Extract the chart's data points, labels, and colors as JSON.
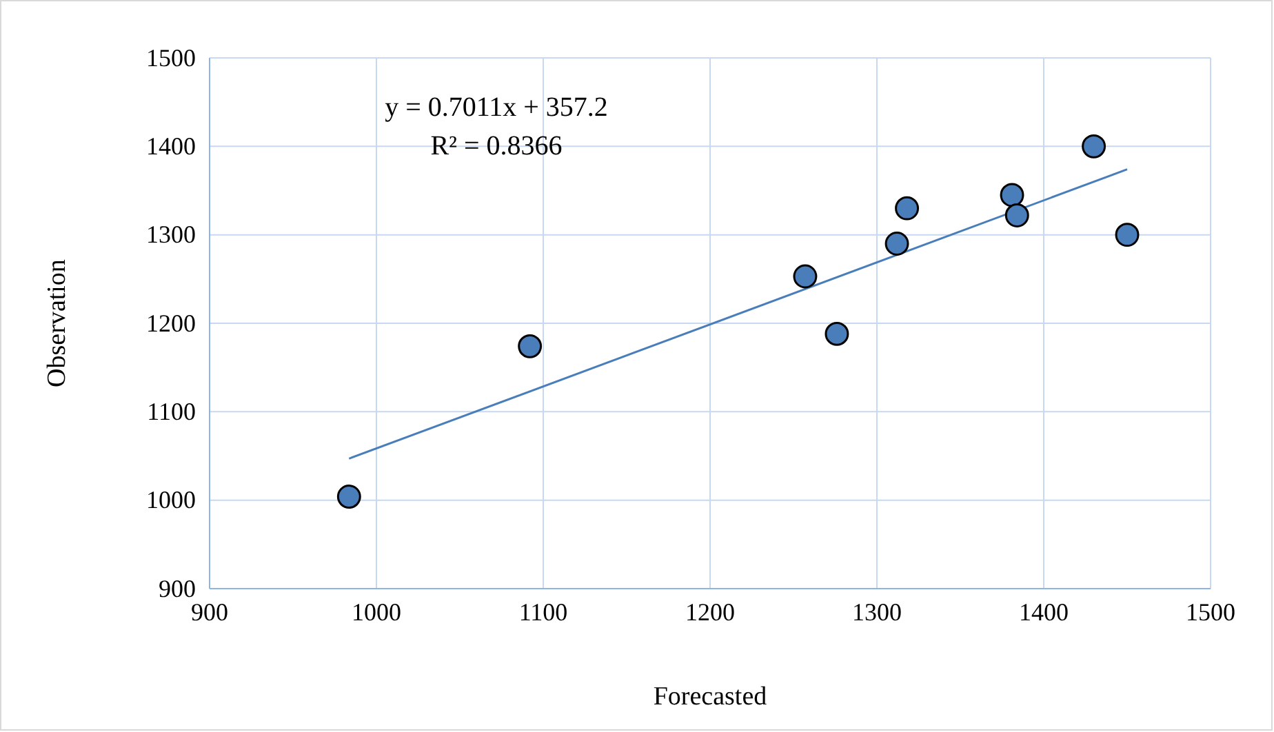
{
  "chart_data": {
    "type": "scatter",
    "xlabel": "Forecasted",
    "ylabel": "Observation",
    "annotations": [
      "y = 0.7011x + 357.2",
      "R² = 0.8366"
    ],
    "xlim": [
      900,
      1500
    ],
    "xticks": [
      900,
      1000,
      1100,
      1200,
      1300,
      1400,
      1500
    ],
    "ylim": [
      900,
      1500
    ],
    "yticks": [
      900,
      1000,
      1100,
      1200,
      1300,
      1400,
      1500
    ],
    "grid": true,
    "series": [
      {
        "marker": "circle",
        "color": "#4a7ebb",
        "x": [
          983.6,
          1092,
          1257,
          1276,
          1312,
          1318,
          1381,
          1384,
          1430,
          1450
        ],
        "values": [
          1004,
          1174,
          1253,
          1188,
          1290,
          1330,
          1345,
          1322,
          1400,
          1300
        ]
      },
      {
        "type": "line",
        "color": "#4a7ebb",
        "x": [
          983.6,
          1450
        ],
        "values": [
          1047,
          1374
        ]
      }
    ]
  }
}
